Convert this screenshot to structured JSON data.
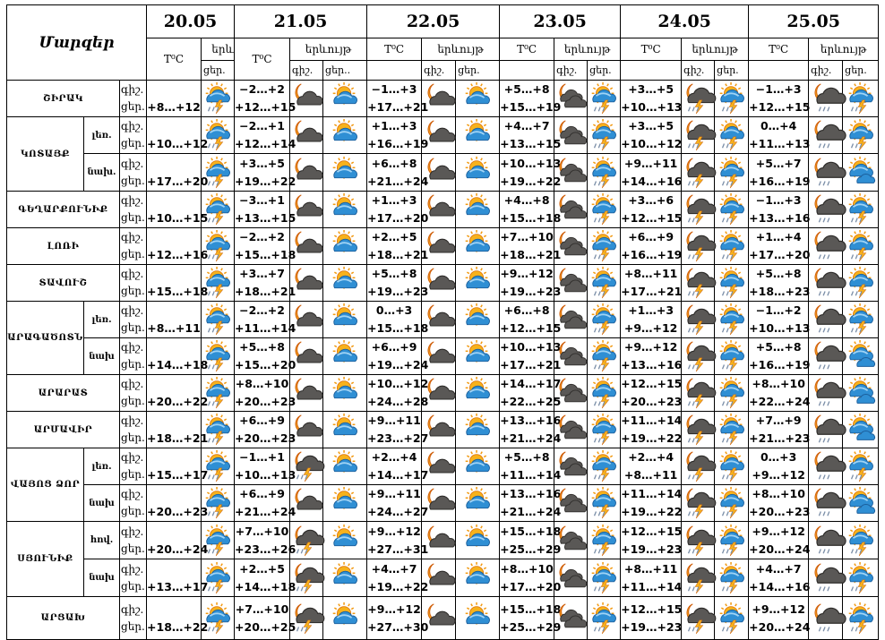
{
  "header": {
    "regions_label": "Մարզեր",
    "temp_label": "T⁰C",
    "phenomenon_label": "երևույթ",
    "phenomenon_short": "երև",
    "night_label": "գիշ.",
    "day_label": "ցեր.",
    "day_label_alt": "ցեր..",
    "dates": [
      "20.05",
      "21.05",
      "22.05",
      "23.05",
      "24.05",
      "25.05"
    ]
  },
  "row_labels": {
    "night": "գիշ.",
    "day": "ցեր."
  },
  "regions": [
    {
      "name": "ՇԻՐԱԿ",
      "rows": [
        {
          "sub": "",
          "d20": {
            "day": "+8…+12",
            "icon": "thunderstorm"
          },
          "days": [
            {
              "night": "−2…+2",
              "day": "+12…+15",
              "icon_night": "night-cloudy",
              "icon_day": "partly-cloudy"
            },
            {
              "night": "−1…+3",
              "day": "+17…+21",
              "icon_night": "night-cloudy",
              "icon_day": "partly-cloudy"
            },
            {
              "night": "+5…+8",
              "day": "+15…+19",
              "icon_night": "night-overcast",
              "icon_day": "thunderstorm"
            },
            {
              "night": "+3…+5",
              "day": "+10…+13",
              "icon_night": "night-thunderstorm",
              "icon_day": "thunderstorm"
            },
            {
              "night": "−1…+3",
              "day": "+12…+15",
              "icon_night": "night-rain",
              "icon_day": "thunderstorm"
            }
          ]
        }
      ]
    },
    {
      "name": "ԿՈՏԱՅՔ",
      "rows": [
        {
          "sub": "լեռ.",
          "d20": {
            "day": "+10…+12",
            "icon": "thunderstorm"
          },
          "days": [
            {
              "night": "−2…+1",
              "day": "+12…+14",
              "icon_night": "night-cloudy",
              "icon_day": "partly-cloudy"
            },
            {
              "night": "+1…+3",
              "day": "+16…+19",
              "icon_night": "night-cloudy",
              "icon_day": "partly-cloudy"
            },
            {
              "night": "+4…+7",
              "day": "+13…+15",
              "icon_night": "night-overcast",
              "icon_day": "thunderstorm"
            },
            {
              "night": "+3…+5",
              "day": "+10…+12",
              "icon_night": "night-thunderstorm",
              "icon_day": "thunderstorm"
            },
            {
              "night": "0…+4",
              "day": "+11…+13",
              "icon_night": "night-rain",
              "icon_day": "thunderstorm"
            }
          ]
        },
        {
          "sub": "նախ.",
          "d20": {
            "day": "+17…+20",
            "icon": "thunderstorm"
          },
          "days": [
            {
              "night": "+3…+5",
              "day": "+19…+22",
              "icon_night": "night-cloudy",
              "icon_day": "partly-cloudy"
            },
            {
              "night": "+6…+8",
              "day": "+21…+24",
              "icon_night": "night-cloudy",
              "icon_day": "partly-cloudy"
            },
            {
              "night": "+10…+13",
              "day": "+19…+22",
              "icon_night": "night-overcast",
              "icon_day": "thunderstorm"
            },
            {
              "night": "+9…+11",
              "day": "+14…+16",
              "icon_night": "night-thunderstorm",
              "icon_day": "thunderstorm"
            },
            {
              "night": "+5…+7",
              "day": "+16…+19",
              "icon_night": "night-rain",
              "icon_day": "sun-clouds"
            }
          ]
        }
      ]
    },
    {
      "name": "ԳԵՂԱՐՔՈՒՆԻՔ",
      "rows": [
        {
          "sub": "",
          "d20": {
            "day": "+10…+15",
            "icon": "thunderstorm"
          },
          "days": [
            {
              "night": "−3…+1",
              "day": "+13…+15",
              "icon_night": "night-cloudy",
              "icon_day": "partly-cloudy"
            },
            {
              "night": "+1…+3",
              "day": "+17…+20",
              "icon_night": "night-cloudy",
              "icon_day": "partly-cloudy"
            },
            {
              "night": "+4…+8",
              "day": "+15…+18",
              "icon_night": "night-overcast",
              "icon_day": "thunderstorm"
            },
            {
              "night": "+3…+6",
              "day": "+12…+15",
              "icon_night": "night-thunderstorm",
              "icon_day": "thunderstorm"
            },
            {
              "night": "−1…+3",
              "day": "+13…+16",
              "icon_night": "night-rain",
              "icon_day": "thunderstorm"
            }
          ]
        }
      ]
    },
    {
      "name": "ԼՈՌԻ",
      "rows": [
        {
          "sub": "",
          "d20": {
            "day": "+12…+16",
            "icon": "thunderstorm"
          },
          "days": [
            {
              "night": "−2…+2",
              "day": "+15…+18",
              "icon_night": "night-cloudy",
              "icon_day": "partly-cloudy"
            },
            {
              "night": "+2…+5",
              "day": "+18…+21",
              "icon_night": "night-cloudy",
              "icon_day": "partly-cloudy"
            },
            {
              "night": "+7…+10",
              "day": "+18…+21",
              "icon_night": "night-overcast",
              "icon_day": "thunderstorm"
            },
            {
              "night": "+6…+9",
              "day": "+16…+19",
              "icon_night": "night-thunderstorm",
              "icon_day": "thunderstorm"
            },
            {
              "night": "+1…+4",
              "day": "+17…+20",
              "icon_night": "night-rain",
              "icon_day": "thunderstorm"
            }
          ]
        }
      ]
    },
    {
      "name": "ՏԱՎՈՒՇ",
      "rows": [
        {
          "sub": "",
          "d20": {
            "day": "+15…+18",
            "icon": "thunderstorm"
          },
          "days": [
            {
              "night": "+3…+7",
              "day": "+18…+21",
              "icon_night": "night-cloudy",
              "icon_day": "partly-cloudy"
            },
            {
              "night": "+5…+8",
              "day": "+19…+23",
              "icon_night": "night-cloudy",
              "icon_day": "partly-cloudy"
            },
            {
              "night": "+9…+12",
              "day": "+19…+23",
              "icon_night": "night-overcast",
              "icon_day": "thunderstorm"
            },
            {
              "night": "+8…+11",
              "day": "+17…+21",
              "icon_night": "night-thunderstorm",
              "icon_day": "thunderstorm"
            },
            {
              "night": "+5…+8",
              "day": "+18…+23",
              "icon_night": "night-rain",
              "icon_day": "thunderstorm"
            }
          ]
        }
      ]
    },
    {
      "name": "ԱՐԱԳԱԾՈՏՆ",
      "rows": [
        {
          "sub": "լեռ.",
          "d20": {
            "day": "+8…+11",
            "icon": "thunderstorm"
          },
          "days": [
            {
              "night": "−2…+2",
              "day": "+11…+14",
              "icon_night": "night-cloudy",
              "icon_day": "partly-cloudy"
            },
            {
              "night": "0…+3",
              "day": "+15…+18",
              "icon_night": "night-cloudy",
              "icon_day": "partly-cloudy"
            },
            {
              "night": "+6…+8",
              "day": "+12…+15",
              "icon_night": "night-overcast",
              "icon_day": "thunderstorm"
            },
            {
              "night": "+1…+3",
              "day": "+9…+12",
              "icon_night": "night-thunderstorm",
              "icon_day": "thunderstorm"
            },
            {
              "night": "−1…+2",
              "day": "+10…+13",
              "icon_night": "night-rain",
              "icon_day": "thunderstorm"
            }
          ]
        },
        {
          "sub": "նախ",
          "d20": {
            "day": "+14…+18",
            "icon": "thunderstorm"
          },
          "days": [
            {
              "night": "+5…+8",
              "day": "+15…+20",
              "icon_night": "night-cloudy",
              "icon_day": "partly-cloudy"
            },
            {
              "night": "+6…+9",
              "day": "+19…+24",
              "icon_night": "night-cloudy",
              "icon_day": "partly-cloudy"
            },
            {
              "night": "+10…+13",
              "day": "+17…+21",
              "icon_night": "night-overcast",
              "icon_day": "thunderstorm"
            },
            {
              "night": "+9…+12",
              "day": "+13…+16",
              "icon_night": "night-thunderstorm",
              "icon_day": "thunderstorm"
            },
            {
              "night": "+5…+8",
              "day": "+16…+19",
              "icon_night": "night-rain",
              "icon_day": "sun-clouds"
            }
          ]
        }
      ]
    },
    {
      "name": "ԱՐԱՐԱՏ",
      "rows": [
        {
          "sub": "",
          "d20": {
            "day": "+20…+22",
            "icon": "thunderstorm"
          },
          "days": [
            {
              "night": "+8…+10",
              "day": "+20…+23",
              "icon_night": "night-cloudy",
              "icon_day": "partly-cloudy"
            },
            {
              "night": "+10…+12",
              "day": "+24…+28",
              "icon_night": "night-cloudy",
              "icon_day": "partly-cloudy"
            },
            {
              "night": "+14…+17",
              "day": "+22…+25",
              "icon_night": "night-overcast",
              "icon_day": "thunderstorm"
            },
            {
              "night": "+12…+15",
              "day": "+20…+23",
              "icon_night": "night-thunderstorm",
              "icon_day": "thunderstorm"
            },
            {
              "night": "+8…+10",
              "day": "+22…+24",
              "icon_night": "night-rain",
              "icon_day": "sun-clouds"
            }
          ]
        }
      ]
    },
    {
      "name": "ԱՐՄԱՎԻՐ",
      "rows": [
        {
          "sub": "",
          "d20": {
            "day": "+18…+21",
            "icon": "thunderstorm"
          },
          "days": [
            {
              "night": "+6…+9",
              "day": "+20…+23",
              "icon_night": "night-cloudy",
              "icon_day": "partly-cloudy"
            },
            {
              "night": "+9…+11",
              "day": "+23…+27",
              "icon_night": "night-cloudy",
              "icon_day": "partly-cloudy"
            },
            {
              "night": "+13…+16",
              "day": "+21…+24",
              "icon_night": "night-overcast",
              "icon_day": "thunderstorm"
            },
            {
              "night": "+11…+14",
              "day": "+19…+22",
              "icon_night": "night-thunderstorm",
              "icon_day": "thunderstorm"
            },
            {
              "night": "+7…+9",
              "day": "+21…+23",
              "icon_night": "night-rain",
              "icon_day": "sun-clouds"
            }
          ]
        }
      ]
    },
    {
      "name": "ՎԱՅՈՑ ՁՈՐ",
      "rows": [
        {
          "sub": "լեռ.",
          "d20": {
            "day": "+15…+17",
            "icon": "thunderstorm"
          },
          "days": [
            {
              "night": "−1…+1",
              "day": "+10…+13",
              "icon_night": "night-thunderstorm",
              "icon_day": "partly-cloudy"
            },
            {
              "night": "+2…+4",
              "day": "+14…+17",
              "icon_night": "night-cloudy",
              "icon_day": "partly-cloudy"
            },
            {
              "night": "+5…+8",
              "day": "+11…+14",
              "icon_night": "night-overcast",
              "icon_day": "thunderstorm"
            },
            {
              "night": "+2…+4",
              "day": "+8…+11",
              "icon_night": "night-thunderstorm",
              "icon_day": "thunderstorm"
            },
            {
              "night": "0…+3",
              "day": "+9…+12",
              "icon_night": "night-rain",
              "icon_day": "thunderstorm"
            }
          ]
        },
        {
          "sub": "նախ",
          "d20": {
            "day": "+20…+23",
            "icon": "thunderstorm"
          },
          "days": [
            {
              "night": "+6…+9",
              "day": "+21…+24",
              "icon_night": "night-cloudy",
              "icon_day": "partly-cloudy"
            },
            {
              "night": "+9…+11",
              "day": "+24…+27",
              "icon_night": "night-cloudy",
              "icon_day": "partly-cloudy"
            },
            {
              "night": "+13…+16",
              "day": "+21…+24",
              "icon_night": "night-overcast",
              "icon_day": "thunderstorm"
            },
            {
              "night": "+11…+14",
              "day": "+19…+22",
              "icon_night": "night-thunderstorm",
              "icon_day": "thunderstorm"
            },
            {
              "night": "+8…+10",
              "day": "+20…+23",
              "icon_night": "night-rain",
              "icon_day": "sun-clouds"
            }
          ]
        }
      ]
    },
    {
      "name": "ՍՅՈՒՆԻՔ",
      "rows": [
        {
          "sub": "հով.",
          "d20": {
            "day": "+20…+24",
            "icon": "thunderstorm"
          },
          "days": [
            {
              "night": "+7…+10",
              "day": "+23…+26",
              "icon_night": "night-thunderstorm",
              "icon_day": "partly-cloudy"
            },
            {
              "night": "+9…+12",
              "day": "+27…+31",
              "icon_night": "night-cloudy",
              "icon_day": "partly-cloudy"
            },
            {
              "night": "+15…+18",
              "day": "+25…+29",
              "icon_night": "night-overcast",
              "icon_day": "thunderstorm"
            },
            {
              "night": "+12…+15",
              "day": "+19…+23",
              "icon_night": "night-thunderstorm",
              "icon_day": "thunderstorm"
            },
            {
              "night": "+9…+12",
              "day": "+20…+24",
              "icon_night": "night-rain",
              "icon_day": "thunderstorm"
            }
          ]
        },
        {
          "sub": "նախ",
          "d20": {
            "day": "+13…+17",
            "icon": "thunderstorm"
          },
          "days": [
            {
              "night": "+2…+5",
              "day": "+14…+18",
              "icon_night": "night-thunderstorm",
              "icon_day": "partly-cloudy"
            },
            {
              "night": "+4…+7",
              "day": "+19…+22",
              "icon_night": "night-cloudy",
              "icon_day": "partly-cloudy"
            },
            {
              "night": "+8…+10",
              "day": "+17…+20",
              "icon_night": "night-overcast",
              "icon_day": "thunderstorm"
            },
            {
              "night": "+8…+11",
              "day": "+11…+14",
              "icon_night": "night-thunderstorm",
              "icon_day": "thunderstorm"
            },
            {
              "night": "+4…+7",
              "day": "+14…+16",
              "icon_night": "night-rain",
              "icon_day": "thunderstorm"
            }
          ]
        }
      ]
    },
    {
      "name": "ԱՐՑԱԽ",
      "rows": [
        {
          "sub": "",
          "d20": {
            "day": "+18…+22",
            "icon": "thunderstorm"
          },
          "days": [
            {
              "night": "+7…+10",
              "day": "+20…+25",
              "icon_night": "night-thunderstorm",
              "icon_day": "partly-cloudy"
            },
            {
              "night": "+9…+12",
              "day": "+27…+30",
              "icon_night": "night-cloudy",
              "icon_day": "partly-cloudy"
            },
            {
              "night": "+15…+18",
              "day": "+25…+29",
              "icon_night": "night-overcast",
              "icon_day": "thunderstorm"
            },
            {
              "night": "+12…+15",
              "day": "+19…+23",
              "icon_night": "night-thunderstorm",
              "icon_day": "thunderstorm"
            },
            {
              "night": "+9…+12",
              "day": "+20…+24",
              "icon_night": "night-rain",
              "icon_day": "thunderstorm"
            }
          ]
        }
      ]
    }
  ]
}
